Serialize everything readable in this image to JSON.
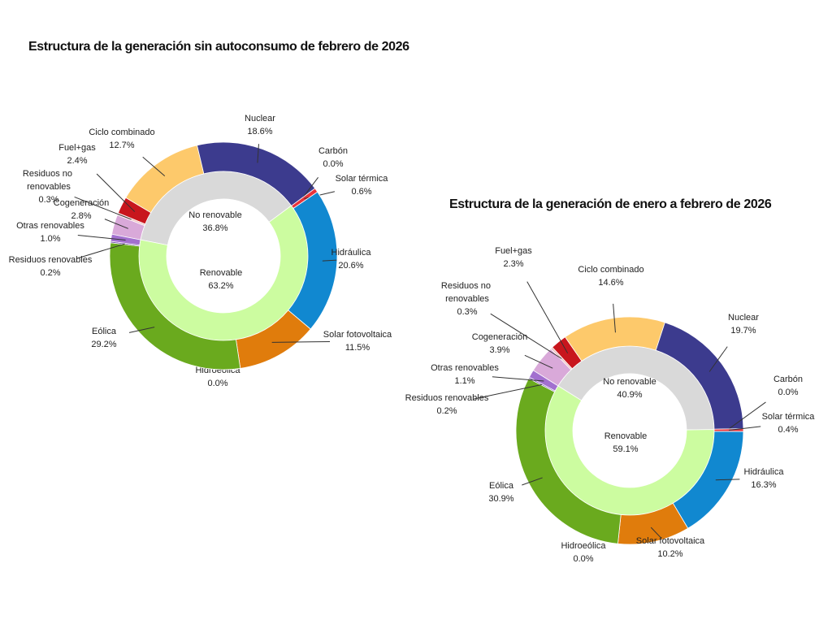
{
  "chart_data": [
    {
      "type": "donut",
      "title": "Estructura de la generación sin autoconsumo de febrero de 2026",
      "categories": [
        "Cogeneración",
        "Residuos no renovables",
        "Fuel+gas",
        "Ciclo combinado",
        "Nuclear",
        "Carbón",
        "Solar térmica",
        "Hidráulica",
        "Solar fotovoltaica",
        "Hidroeólica",
        "Eólica",
        "Residuos renovables",
        "Otras renovables"
      ],
      "values": [
        2.8,
        0.3,
        2.4,
        12.7,
        18.6,
        0.0,
        0.6,
        20.6,
        11.5,
        0.0,
        29.2,
        0.2,
        1.0
      ],
      "value_labels": [
        "2.8%",
        "0.3%",
        "2.4%",
        "12.7%",
        "18.6%",
        "0.0%",
        "0.6%",
        "20.6%",
        "11.5%",
        "0.0%",
        "29.2%",
        "0.2%",
        "1.0%"
      ],
      "colors": [
        "#d9a9d9",
        "#eec0c0",
        "#c8161d",
        "#fdc96b",
        "#3c3b8e",
        "#8b1a1a",
        "#e8333a",
        "#1188d0",
        "#e07c0c",
        "#3aa0a0",
        "#6aaa1e",
        "#6a3fa8",
        "#a270cf"
      ],
      "inner": {
        "categories": [
          "No renovable",
          "Renovable"
        ],
        "values": [
          36.8,
          63.2
        ],
        "value_labels": [
          "36.8%",
          "63.2%"
        ],
        "colors": [
          "#d9d9d9",
          "#ccfca0"
        ]
      }
    },
    {
      "type": "donut",
      "title": "Estructura de la generación de enero a febrero de 2026",
      "categories": [
        "Cogeneración",
        "Residuos no renovables",
        "Fuel+gas",
        "Ciclo combinado",
        "Nuclear",
        "Carbón",
        "Solar térmica",
        "Hidráulica",
        "Solar fotovoltaica",
        "Hidroeólica",
        "Eólica",
        "Residuos renovables",
        "Otras renovables"
      ],
      "values": [
        3.9,
        0.3,
        2.3,
        14.6,
        19.7,
        0.0,
        0.4,
        16.3,
        10.2,
        0.0,
        30.9,
        0.2,
        1.1
      ],
      "value_labels": [
        "3.9%",
        "0.3%",
        "2.3%",
        "14.6%",
        "19.7%",
        "0.0%",
        "0.4%",
        "16.3%",
        "10.2%",
        "0.0%",
        "30.9%",
        "0.2%",
        "1.1%"
      ],
      "colors": [
        "#d9a9d9",
        "#eec0c0",
        "#c8161d",
        "#fdc96b",
        "#3c3b8e",
        "#8b1a1a",
        "#e8333a",
        "#1188d0",
        "#e07c0c",
        "#3aa0a0",
        "#6aaa1e",
        "#6a3fa8",
        "#a270cf"
      ],
      "inner": {
        "categories": [
          "No renovable",
          "Renovable"
        ],
        "values": [
          40.9,
          59.1
        ],
        "value_labels": [
          "40.9%",
          "59.1%"
        ],
        "colors": [
          "#d9d9d9",
          "#ccfca0"
        ]
      }
    }
  ]
}
